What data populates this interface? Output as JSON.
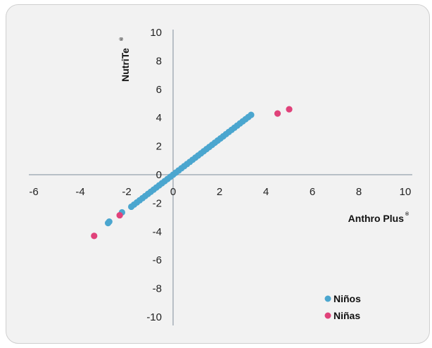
{
  "chart_data": {
    "type": "scatter",
    "xlabel": "Anthro Plus",
    "ylabel": "NutriTe",
    "registered_mark": "®",
    "xlim": [
      -6,
      10
    ],
    "ylim": [
      -10,
      10
    ],
    "x_ticks": [
      -6,
      -4,
      -2,
      0,
      2,
      4,
      6,
      8,
      10
    ],
    "y_ticks": [
      -10,
      -8,
      -6,
      -4,
      -2,
      0,
      2,
      4,
      6,
      8,
      10
    ],
    "grid": false,
    "legend": "bottom-right",
    "series": [
      {
        "name": "Niños",
        "color": "#4ba6cf",
        "points": [
          [
            -2.8,
            -3.4
          ],
          [
            -2.75,
            -3.3
          ],
          [
            -2.2,
            -2.65
          ],
          [
            -1.8,
            -2.25
          ],
          [
            -1.68,
            -2.1
          ],
          [
            -1.56,
            -1.95
          ],
          [
            -1.44,
            -1.8
          ],
          [
            -1.32,
            -1.65
          ],
          [
            -1.2,
            -1.5
          ],
          [
            -1.08,
            -1.35
          ],
          [
            -0.96,
            -1.2
          ],
          [
            -0.84,
            -1.05
          ],
          [
            -0.72,
            -0.9
          ],
          [
            -0.6,
            -0.75
          ],
          [
            -0.48,
            -0.6
          ],
          [
            -0.36,
            -0.45
          ],
          [
            -0.24,
            -0.3
          ],
          [
            -0.12,
            -0.15
          ],
          [
            0.0,
            0.0
          ],
          [
            0.12,
            0.15
          ],
          [
            0.24,
            0.3
          ],
          [
            0.36,
            0.45
          ],
          [
            0.48,
            0.6
          ],
          [
            0.6,
            0.75
          ],
          [
            0.72,
            0.9
          ],
          [
            0.84,
            1.05
          ],
          [
            0.96,
            1.2
          ],
          [
            1.08,
            1.35
          ],
          [
            1.2,
            1.5
          ],
          [
            1.32,
            1.65
          ],
          [
            1.44,
            1.8
          ],
          [
            1.56,
            1.95
          ],
          [
            1.68,
            2.1
          ],
          [
            1.8,
            2.25
          ],
          [
            1.92,
            2.4
          ],
          [
            2.04,
            2.55
          ],
          [
            2.16,
            2.7
          ],
          [
            2.28,
            2.85
          ],
          [
            2.4,
            3.0
          ],
          [
            2.52,
            3.15
          ],
          [
            2.64,
            3.3
          ],
          [
            2.76,
            3.45
          ],
          [
            2.88,
            3.6
          ],
          [
            3.0,
            3.75
          ],
          [
            3.12,
            3.9
          ],
          [
            3.24,
            4.05
          ],
          [
            3.36,
            4.2
          ]
        ]
      },
      {
        "name": "Niñas",
        "color": "#e0427a",
        "points": [
          [
            -3.4,
            -4.3
          ],
          [
            -2.3,
            -2.85
          ],
          [
            4.5,
            4.3
          ],
          [
            5.0,
            4.6
          ]
        ]
      }
    ]
  }
}
